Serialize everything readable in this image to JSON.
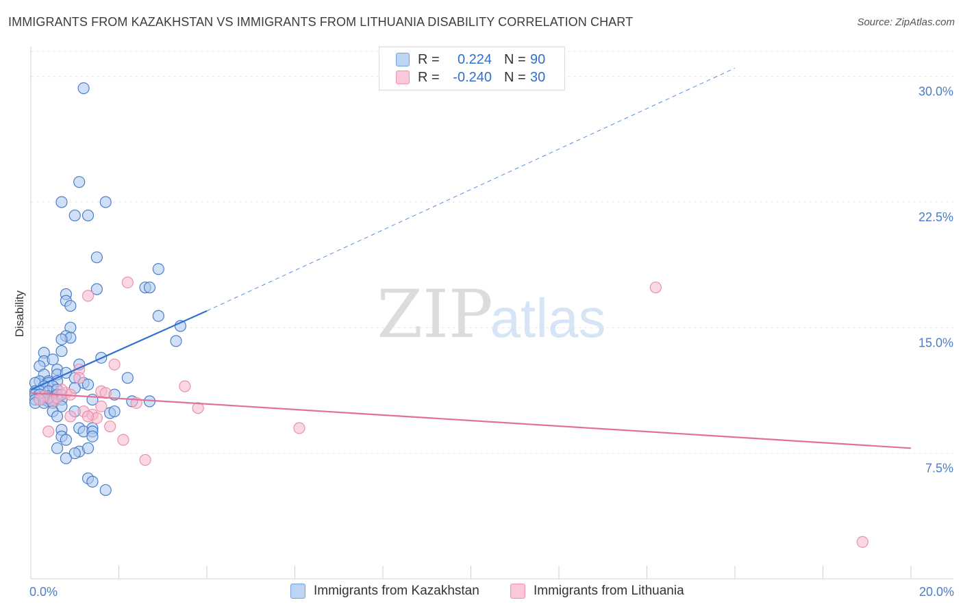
{
  "title": "IMMIGRANTS FROM KAZAKHSTAN VS IMMIGRANTS FROM LITHUANIA DISABILITY CORRELATION CHART",
  "source": "Source: ZipAtlas.com",
  "watermark": {
    "zip": "ZIP",
    "atlas": "atlas"
  },
  "colors": {
    "blue": "#4a7cc8",
    "blue_fill": "#aac8f0",
    "blue_line": "#2f6fd0",
    "pink_fill": "#f6b8cc",
    "pink_line": "#e0709a",
    "grid": "#e6e6e6"
  },
  "legend": {
    "rows": [
      {
        "r_label": "R =",
        "r_value": "0.224",
        "n_label": "N =",
        "n_value": "90"
      },
      {
        "r_label": "R =",
        "r_value": "-0.240",
        "n_label": "N =",
        "n_value": "30"
      }
    ]
  },
  "bottom_legend": [
    "Immigrants from Kazakhstan",
    "Immigrants from Lithuania"
  ],
  "chart_data": {
    "type": "scatter",
    "xlabel": "",
    "ylabel": "Disability",
    "xlim": [
      0,
      20
    ],
    "ylim": [
      0,
      31.5
    ],
    "x_tick_labels": [
      "0.0%",
      "20.0%"
    ],
    "y_ticks": [
      7.5,
      15,
      22.5,
      30
    ],
    "y_tick_labels": [
      "7.5%",
      "15.0%",
      "22.5%",
      "30.0%"
    ],
    "grid": true,
    "legend_position": "top-center",
    "series": [
      {
        "name": "Immigrants from Kazakhstan",
        "color": "#4a7cc8",
        "trend": {
          "x": [
            0.0,
            4.0
          ],
          "y": [
            11.3,
            16.0
          ],
          "dashed_extension_to": [
            16.0,
            30.5
          ]
        },
        "points": [
          [
            1.2,
            29.3
          ],
          [
            1.1,
            23.7
          ],
          [
            0.7,
            22.5
          ],
          [
            1.7,
            22.5
          ],
          [
            1.0,
            21.7
          ],
          [
            1.3,
            21.7
          ],
          [
            1.5,
            19.2
          ],
          [
            2.9,
            18.5
          ],
          [
            1.5,
            17.3
          ],
          [
            2.6,
            17.4
          ],
          [
            2.7,
            17.4
          ],
          [
            0.8,
            17.0
          ],
          [
            0.8,
            16.6
          ],
          [
            0.9,
            16.3
          ],
          [
            2.9,
            15.7
          ],
          [
            3.4,
            15.1
          ],
          [
            0.9,
            15.0
          ],
          [
            0.8,
            14.5
          ],
          [
            0.9,
            14.4
          ],
          [
            0.7,
            14.3
          ],
          [
            3.3,
            14.2
          ],
          [
            0.7,
            13.6
          ],
          [
            0.3,
            13.5
          ],
          [
            0.3,
            13.0
          ],
          [
            0.5,
            13.1
          ],
          [
            1.6,
            13.2
          ],
          [
            1.1,
            12.8
          ],
          [
            0.2,
            12.7
          ],
          [
            0.6,
            12.5
          ],
          [
            0.3,
            12.2
          ],
          [
            0.6,
            12.2
          ],
          [
            0.8,
            12.3
          ],
          [
            1.0,
            12.0
          ],
          [
            0.2,
            11.8
          ],
          [
            0.4,
            11.8
          ],
          [
            0.1,
            11.7
          ],
          [
            0.4,
            11.7
          ],
          [
            0.6,
            11.8
          ],
          [
            1.2,
            11.7
          ],
          [
            1.3,
            11.6
          ],
          [
            2.2,
            12.0
          ],
          [
            0.3,
            11.5
          ],
          [
            0.5,
            11.5
          ],
          [
            0.1,
            11.2
          ],
          [
            0.2,
            11.2
          ],
          [
            0.4,
            11.2
          ],
          [
            0.6,
            11.3
          ],
          [
            1.0,
            11.4
          ],
          [
            0.1,
            11.0
          ],
          [
            0.2,
            11.0
          ],
          [
            0.3,
            10.9
          ],
          [
            0.4,
            10.9
          ],
          [
            0.6,
            11.0
          ],
          [
            0.7,
            11.0
          ],
          [
            0.1,
            10.7
          ],
          [
            0.2,
            10.7
          ],
          [
            0.3,
            10.7
          ],
          [
            0.4,
            10.6
          ],
          [
            0.5,
            10.7
          ],
          [
            0.7,
            10.7
          ],
          [
            1.4,
            10.7
          ],
          [
            1.9,
            11.0
          ],
          [
            0.1,
            10.5
          ],
          [
            0.3,
            10.5
          ],
          [
            0.5,
            10.5
          ],
          [
            2.7,
            10.6
          ],
          [
            2.3,
            10.6
          ],
          [
            0.7,
            10.3
          ],
          [
            0.5,
            10.0
          ],
          [
            1.0,
            10.0
          ],
          [
            1.8,
            9.9
          ],
          [
            0.6,
            9.7
          ],
          [
            1.9,
            10.0
          ],
          [
            1.1,
            9.0
          ],
          [
            1.4,
            9.0
          ],
          [
            0.7,
            8.9
          ],
          [
            1.2,
            8.8
          ],
          [
            1.4,
            8.8
          ],
          [
            0.7,
            8.5
          ],
          [
            0.8,
            8.3
          ],
          [
            1.4,
            8.5
          ],
          [
            0.6,
            7.8
          ],
          [
            1.1,
            7.6
          ],
          [
            1.3,
            7.8
          ],
          [
            1.0,
            7.5
          ],
          [
            0.8,
            7.2
          ],
          [
            1.3,
            6.0
          ],
          [
            1.4,
            5.8
          ],
          [
            1.7,
            5.3
          ],
          [
            0.4,
            10.8
          ]
        ]
      },
      {
        "name": "Immigrants from Lithuania",
        "color": "#f6b8cc",
        "trend": {
          "x": [
            0.0,
            20.0
          ],
          "y": [
            11.1,
            7.8
          ]
        },
        "points": [
          [
            2.2,
            17.7
          ],
          [
            1.3,
            16.9
          ],
          [
            14.2,
            17.4
          ],
          [
            1.9,
            12.8
          ],
          [
            1.1,
            12.5
          ],
          [
            3.5,
            11.5
          ],
          [
            1.6,
            11.2
          ],
          [
            1.7,
            11.1
          ],
          [
            0.8,
            11.1
          ],
          [
            0.9,
            11.0
          ],
          [
            0.3,
            10.9
          ],
          [
            1.6,
            10.3
          ],
          [
            2.4,
            10.5
          ],
          [
            3.8,
            10.2
          ],
          [
            0.5,
            10.6
          ],
          [
            0.6,
            10.8
          ],
          [
            0.2,
            10.7
          ],
          [
            1.2,
            10.0
          ],
          [
            1.4,
            9.8
          ],
          [
            0.9,
            9.7
          ],
          [
            1.5,
            9.6
          ],
          [
            1.8,
            9.1
          ],
          [
            6.1,
            9.0
          ],
          [
            0.4,
            8.8
          ],
          [
            2.1,
            8.3
          ],
          [
            2.6,
            7.1
          ],
          [
            18.9,
            2.2
          ],
          [
            1.1,
            12.0
          ],
          [
            0.7,
            11.3
          ],
          [
            1.3,
            9.7
          ]
        ]
      }
    ]
  }
}
